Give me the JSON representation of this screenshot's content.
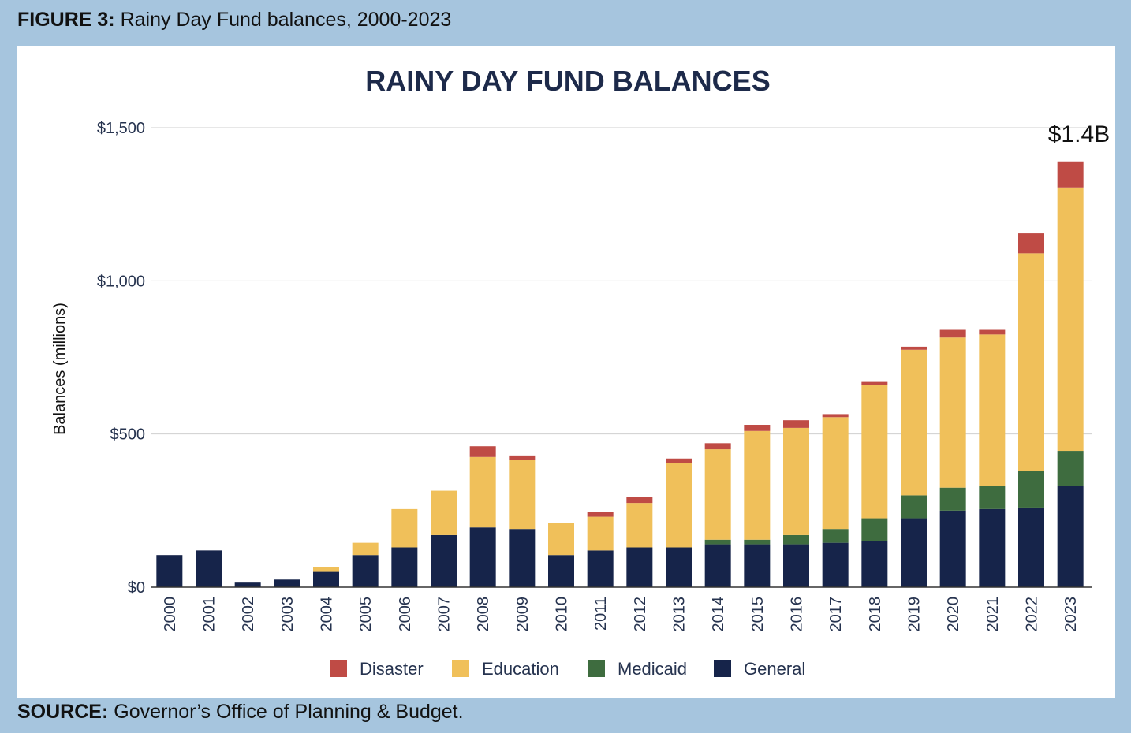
{
  "figure": {
    "label": "FIGURE 3:",
    "caption": "Rainy Day Fund balances, 2000-2023"
  },
  "source": {
    "label": "SOURCE:",
    "text": "Governor’s Office of Planning & Budget."
  },
  "chart_data": {
    "type": "bar",
    "stacked": true,
    "title": "RAINY DAY FUND BALANCES",
    "xlabel": "",
    "ylabel": "Balances (millions)",
    "ylim": [
      0,
      1500
    ],
    "yticks": [
      {
        "value": 0,
        "label": "$0"
      },
      {
        "value": 500,
        "label": "$500"
      },
      {
        "value": 1000,
        "label": "$1,000"
      },
      {
        "value": 1500,
        "label": "$1,500"
      }
    ],
    "grid": true,
    "legend_position": "bottom",
    "categories": [
      "2000",
      "2001",
      "2002",
      "2003",
      "2004",
      "2005",
      "2006",
      "2007",
      "2008",
      "2009",
      "2010",
      "2011",
      "2012",
      "2013",
      "2014",
      "2015",
      "2016",
      "2017",
      "2018",
      "2019",
      "2020",
      "2021",
      "2022",
      "2023"
    ],
    "series": [
      {
        "name": "General",
        "color": "#16244a",
        "values": [
          105,
          120,
          15,
          25,
          50,
          105,
          130,
          170,
          195,
          190,
          105,
          120,
          130,
          130,
          140,
          140,
          140,
          145,
          150,
          225,
          250,
          255,
          260,
          330
        ]
      },
      {
        "name": "Medicaid",
        "color": "#3e6c3f",
        "values": [
          0,
          0,
          0,
          0,
          0,
          0,
          0,
          0,
          0,
          0,
          0,
          0,
          0,
          0,
          15,
          15,
          30,
          45,
          75,
          75,
          75,
          75,
          120,
          115
        ]
      },
      {
        "name": "Education",
        "color": "#f0c05a",
        "values": [
          0,
          0,
          0,
          0,
          15,
          40,
          125,
          145,
          230,
          225,
          105,
          110,
          145,
          275,
          295,
          355,
          350,
          365,
          435,
          475,
          490,
          495,
          710,
          860
        ]
      },
      {
        "name": "Disaster",
        "color": "#bf4b45",
        "values": [
          0,
          0,
          0,
          0,
          0,
          0,
          0,
          0,
          35,
          15,
          0,
          15,
          20,
          15,
          20,
          20,
          25,
          10,
          10,
          10,
          25,
          15,
          65,
          85
        ]
      }
    ],
    "legend_order": [
      "Disaster",
      "Education",
      "Medicaid",
      "General"
    ],
    "annotations": [
      {
        "category": "2023",
        "text": "$1.4B"
      }
    ]
  }
}
